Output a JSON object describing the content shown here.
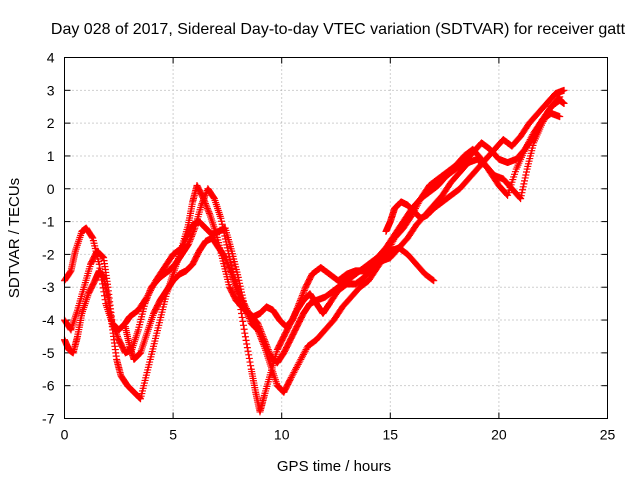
{
  "chart_data": {
    "type": "scatter",
    "title": "Day 028 of 2017, Sidereal Day-to-day VTEC variation (SDTVAR) for receiver gatt",
    "xlabel": "GPS time / hours",
    "ylabel": "SDTVAR / TECUs",
    "xlim": [
      0,
      25
    ],
    "ylim": [
      -7,
      4
    ],
    "xticks": [
      "0",
      "5",
      "10",
      "15",
      "20",
      "25"
    ],
    "yticks": [
      "-7",
      "-6",
      "-5",
      "-4",
      "-3",
      "-2",
      "-1",
      "0",
      "1",
      "2",
      "3",
      "4"
    ],
    "grid": true,
    "marker": "+",
    "color": "#ff0000",
    "series": [
      {
        "x": [
          0,
          0.3,
          0.5,
          0.8,
          1.0,
          1.3,
          1.6,
          1.9,
          2.2,
          2.5,
          2.8,
          3.0,
          3.4,
          3.8,
          4.2,
          4.6,
          5.0,
          5.4,
          5.7,
          5.9,
          6.1,
          6.4,
          6.7,
          7.0,
          7.3,
          7.6,
          7.9,
          8.3,
          8.7,
          9.0,
          9.3,
          9.6,
          9.9,
          10.2,
          10.5,
          10.8,
          11.1,
          11.4,
          11.8,
          12.2,
          12.6,
          13.0,
          13.4,
          13.8,
          14.2,
          14.6,
          15.0,
          15.4,
          15.8,
          16.2,
          16.6,
          17.0
        ],
        "y": [
          -2.8,
          -2.5,
          -1.9,
          -1.3,
          -1.2,
          -1.5,
          -2.3,
          -3.5,
          -4.1,
          -4.3,
          -4.1,
          -3.9,
          -3.7,
          -3.3,
          -2.8,
          -2.4,
          -2.0,
          -1.8,
          -1.1,
          -0.4,
          0.1,
          -0.3,
          -0.8,
          -1.4,
          -2.2,
          -3.0,
          -3.4,
          -3.7,
          -3.9,
          -3.8,
          -3.6,
          -3.7,
          -4.0,
          -4.2,
          -4.0,
          -3.5,
          -3.0,
          -2.6,
          -2.4,
          -2.6,
          -2.8,
          -2.6,
          -2.5,
          -2.5,
          -2.3,
          -2.1,
          -1.9,
          -1.8,
          -2.0,
          -2.3,
          -2.6,
          -2.8
        ]
      },
      {
        "x": [
          0,
          0.3,
          0.6,
          0.9,
          1.2,
          1.5,
          1.8,
          2.0,
          2.2,
          2.5,
          2.8,
          3.1,
          3.4,
          3.7,
          4.0,
          4.4,
          4.8,
          5.1,
          5.4,
          5.7,
          6.0,
          6.3,
          6.6,
          6.9,
          7.2,
          7.5,
          7.8,
          8.1,
          8.5,
          8.9,
          9.2,
          9.5,
          9.8,
          10.1,
          10.4,
          10.7,
          11.0,
          11.3,
          11.6,
          12.0,
          12.4,
          12.8,
          13.2,
          13.6,
          14.0,
          14.4,
          14.8,
          15.2,
          15.6,
          16.0,
          16.4,
          16.8,
          17.2,
          17.6,
          18.0,
          18.4,
          18.8,
          19.2,
          19.6,
          20.0,
          20.4,
          20.8,
          21.2,
          21.6,
          22.0,
          22.4,
          22.8,
          23.0
        ],
        "y": [
          -4.0,
          -4.3,
          -3.7,
          -3.0,
          -2.3,
          -1.9,
          -2.1,
          -3.0,
          -4.1,
          -4.6,
          -5.0,
          -4.9,
          -4.3,
          -3.5,
          -3.0,
          -2.7,
          -2.5,
          -2.3,
          -2.0,
          -1.7,
          -1.2,
          -0.5,
          0.0,
          -0.3,
          -0.9,
          -1.8,
          -2.7,
          -3.3,
          -3.8,
          -4.1,
          -4.6,
          -5.1,
          -5.3,
          -5.0,
          -4.6,
          -4.2,
          -3.8,
          -3.5,
          -3.4,
          -3.3,
          -3.1,
          -2.9,
          -2.7,
          -2.5,
          -2.3,
          -2.1,
          -1.8,
          -1.4,
          -1.0,
          -0.6,
          -0.3,
          -0.1,
          0.1,
          0.4,
          0.6,
          0.8,
          1.1,
          1.4,
          1.2,
          0.9,
          0.8,
          0.9,
          1.2,
          1.6,
          2.1,
          2.5,
          2.7,
          2.6
        ]
      },
      {
        "x": [
          0,
          0.2,
          0.4,
          0.6,
          0.8,
          1.1,
          1.4,
          1.6,
          1.8,
          2.0,
          2.2,
          2.4,
          2.6,
          2.9,
          3.2,
          3.5,
          3.8,
          4.1,
          4.4,
          4.7,
          5.0,
          5.3,
          5.6,
          5.9,
          6.2,
          6.5,
          6.8,
          7.1,
          7.4,
          7.7,
          8.0,
          8.3,
          8.6,
          8.9,
          9.2,
          9.5,
          9.8,
          10.1,
          10.4,
          10.8,
          11.2,
          11.6,
          12.0,
          12.4,
          12.8,
          13.2,
          13.6,
          14.0,
          14.4,
          14.8,
          15.2,
          15.6,
          16.0,
          16.4,
          16.8,
          17.2,
          17.6,
          18.0,
          18.4,
          18.8,
          19.2,
          19.6,
          20.0,
          20.4,
          20.8,
          21.2,
          21.6,
          22.0,
          22.4,
          22.8
        ],
        "y": [
          -4.6,
          -4.9,
          -5.0,
          -4.5,
          -3.8,
          -3.2,
          -2.8,
          -2.5,
          -2.7,
          -3.3,
          -4.2,
          -5.2,
          -5.7,
          -6.0,
          -6.2,
          -6.4,
          -5.6,
          -4.8,
          -4.0,
          -3.2,
          -2.6,
          -2.0,
          -1.5,
          -1.1,
          -1.0,
          -1.2,
          -1.4,
          -1.3,
          -1.2,
          -1.9,
          -2.7,
          -3.6,
          -4.1,
          -4.3,
          -4.8,
          -5.4,
          -6.0,
          -6.2,
          -5.8,
          -5.3,
          -4.8,
          -4.6,
          -4.3,
          -4.0,
          -3.6,
          -3.3,
          -3.0,
          -2.8,
          -2.4,
          -2.0,
          -1.5,
          -1.2,
          -0.8,
          -0.3,
          0.1,
          0.3,
          0.5,
          0.7,
          1.0,
          1.2,
          0.9,
          0.5,
          0.1,
          -0.2,
          0.6,
          1.2,
          1.7,
          2.1,
          2.3,
          2.2
        ]
      },
      {
        "x": [
          2.8,
          3.0,
          3.2,
          3.5,
          3.8,
          4.1,
          4.4,
          4.7,
          5.0,
          5.3,
          5.6,
          5.9,
          6.2,
          6.5,
          6.8,
          7.1,
          7.4,
          7.7,
          8.0,
          8.3,
          8.6,
          8.8,
          9.0,
          9.2,
          9.5,
          9.8,
          10.1,
          10.4,
          10.7,
          11.0,
          11.3,
          11.6,
          11.9,
          12.2,
          12.6,
          13.0,
          13.4,
          13.8,
          14.2,
          14.6,
          15.0,
          15.4,
          15.8,
          16.2,
          16.6,
          17.0,
          17.4,
          17.8,
          18.2,
          18.6,
          19.0,
          19.4,
          19.8,
          20.2,
          20.6,
          21.0,
          21.3,
          21.6,
          22.0,
          22.4,
          22.8
        ],
        "y": [
          -4.2,
          -4.8,
          -5.2,
          -5.0,
          -4.4,
          -3.8,
          -3.4,
          -3.1,
          -2.8,
          -2.6,
          -2.5,
          -2.3,
          -1.9,
          -1.6,
          -1.5,
          -1.8,
          -2.1,
          -2.6,
          -3.2,
          -4.4,
          -5.5,
          -6.2,
          -6.8,
          -6.3,
          -5.6,
          -4.9,
          -4.5,
          -4.1,
          -3.7,
          -3.4,
          -3.2,
          -3.5,
          -3.8,
          -3.5,
          -3.1,
          -2.9,
          -2.9,
          -2.7,
          -2.4,
          -2.2,
          -2.1,
          -1.8,
          -1.5,
          -1.1,
          -0.8,
          -0.5,
          -0.2,
          0.2,
          0.5,
          0.8,
          0.9,
          0.7,
          0.4,
          0.3,
          0.0,
          -0.3,
          0.6,
          1.4,
          2.0,
          2.5,
          2.8
        ]
      },
      {
        "x": [
          14.8,
          15.0,
          15.2,
          15.5,
          15.8,
          16.1,
          16.4,
          16.7,
          17.0,
          17.4,
          17.8,
          18.2,
          18.6,
          19.0,
          19.4,
          19.8,
          20.2,
          20.6,
          21.0,
          21.4,
          21.8,
          22.2,
          22.6,
          23.0
        ],
        "y": [
          -1.3,
          -1.0,
          -0.6,
          -0.4,
          -0.5,
          -0.7,
          -0.9,
          -0.8,
          -0.6,
          -0.4,
          -0.2,
          0.0,
          0.3,
          0.6,
          0.9,
          1.2,
          1.5,
          1.3,
          1.6,
          2.0,
          2.3,
          2.6,
          2.9,
          3.0
        ]
      }
    ]
  }
}
